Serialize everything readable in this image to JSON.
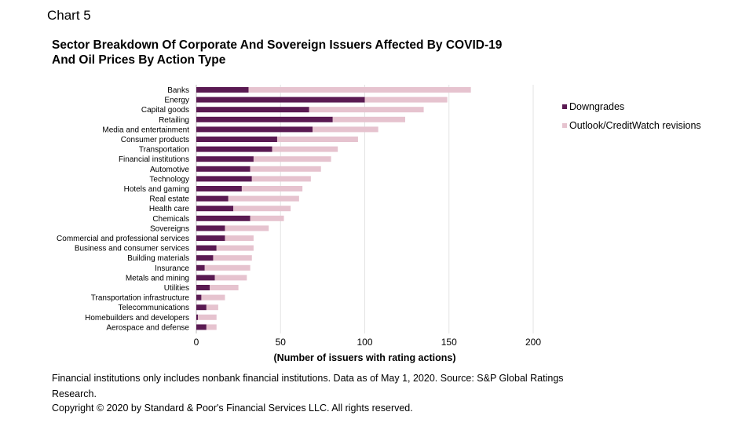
{
  "header": {
    "chart_label": "Chart 5",
    "title_line1": "Sector Breakdown Of Corporate And Sovereign Issuers Affected By COVID-19",
    "title_line2": "And Oil Prices By Action Type"
  },
  "footer": {
    "note": "Financial institutions only includes nonbank financial institutions. Data as of May 1, 2020. Source: S&P Global Ratings Research.",
    "copyright": "Copyright © 2020 by Standard & Poor's Financial Services LLC. All rights reserved."
  },
  "colors": {
    "downgrades": "#5a1a52",
    "outlook": "#e6c3cf",
    "grid": "#e3e3e3"
  },
  "chart_data": {
    "type": "bar",
    "orientation": "horizontal",
    "stacked": true,
    "categories": [
      "Banks",
      "Energy",
      "Capital goods",
      "Retailing",
      "Media and entertainment",
      "Consumer products",
      "Transportation",
      "Financial institutions",
      "Automotive",
      "Technology",
      "Hotels and gaming",
      "Real estate",
      "Health care",
      "Chemicals",
      "Sovereigns",
      "Commercial and professional services",
      "Business and consumer services",
      "Building materials",
      "Insurance",
      "Metals and mining",
      "Utilities",
      "Transportation infrastructure",
      "Telecommunications",
      "Homebuilders and developers",
      "Aerospace and defense"
    ],
    "series": [
      {
        "name": "Downgrades",
        "values": [
          31,
          100,
          67,
          81,
          69,
          48,
          45,
          34,
          32,
          33,
          27,
          19,
          22,
          32,
          17,
          17,
          12,
          10,
          5,
          11,
          8,
          3,
          6,
          1,
          6
        ]
      },
      {
        "name": "Outlook/CreditWatch revisions",
        "values": [
          132,
          49,
          68,
          43,
          39,
          48,
          39,
          46,
          42,
          35,
          36,
          42,
          34,
          20,
          26,
          17,
          22,
          23,
          27,
          19,
          17,
          14,
          7,
          11,
          6
        ]
      }
    ],
    "xlabel": "(Number of issuers with rating actions)",
    "xlim": [
      0,
      200
    ],
    "xticks": [
      "0",
      "50",
      "100",
      "150",
      "200"
    ],
    "grid": true,
    "legend_position": "right"
  }
}
